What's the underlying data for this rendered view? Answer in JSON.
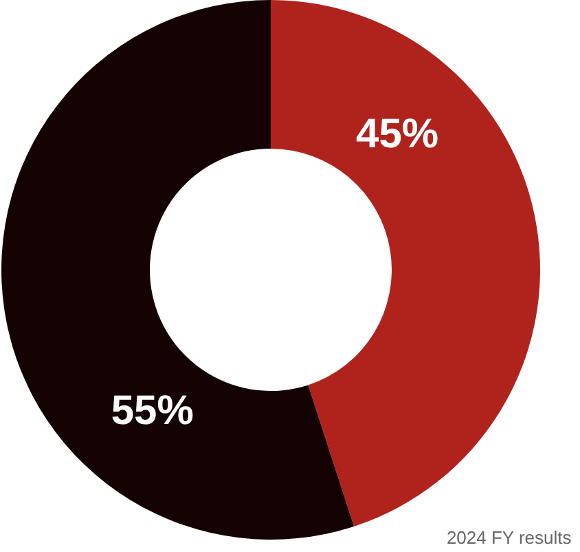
{
  "chart_data": {
    "type": "donut",
    "categories": [
      null,
      null
    ],
    "values": [
      45,
      55
    ],
    "colors": [
      "#b0231d",
      "#150304"
    ],
    "value_labels": [
      "45%",
      "55%"
    ],
    "annotations": [
      "2024 FY results"
    ]
  }
}
